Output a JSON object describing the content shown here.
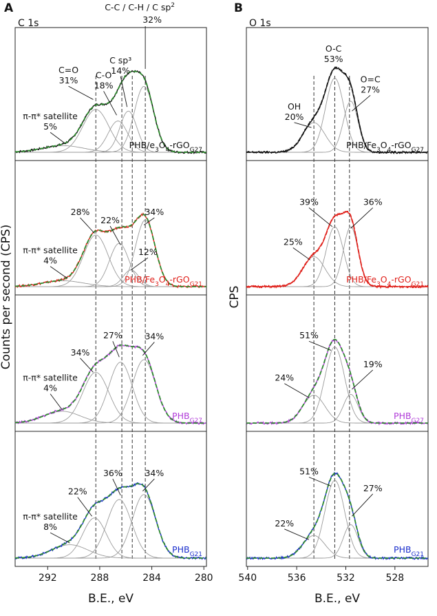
{
  "figure": {
    "panels": [
      {
        "id": "A",
        "label": "A",
        "core_level": "C 1s",
        "x_label": "B.E., eV",
        "y_label": "Counts per second (CPS)",
        "x_ticks": [
          "292",
          "288",
          "284",
          "280"
        ],
        "x_tick_values": [
          292,
          288,
          284,
          280
        ],
        "x_range": [
          294.5,
          279.8
        ],
        "reference_lines": [
          288.3,
          286.3,
          285.5,
          284.5
        ],
        "header_labels": [
          {
            "text": "C-C / C-H / C sp",
            "sup": "2"
          },
          {
            "text": "32%",
            "sup": ""
          }
        ],
        "subplots": [
          {
            "sample": "PHB/e3O4-rGOG27",
            "sample_parts": [
              {
                "t": "PHB/e",
                "s": ""
              },
              {
                "t": "3",
                "s": "sub"
              },
              {
                "t": "O",
                "s": ""
              },
              {
                "t": "4",
                "s": "sub"
              },
              {
                "t": "-rGO",
                "s": ""
              },
              {
                "t": "G27",
                "s": "sub"
              }
            ],
            "color": "#111111",
            "fit_color": "#2e8b2e",
            "peaks": [
              {
                "center": 290.8,
                "width": 1.6,
                "amp": 0.08
              },
              {
                "center": 288.3,
                "width": 1.0,
                "amp": 0.52
              },
              {
                "center": 286.6,
                "width": 0.75,
                "amp": 0.38
              },
              {
                "center": 285.8,
                "width": 0.65,
                "amp": 0.5
              },
              {
                "center": 284.6,
                "width": 0.75,
                "amp": 0.8
              }
            ],
            "annotations": [
              {
                "lines": [
                  "C=O",
                  "31%"
                ],
                "tx": 290.4,
                "ty": 0.96,
                "ax": 288.5,
                "ay": 0.64
              },
              {
                "lines": [
                  "C-O",
                  "18%"
                ],
                "tx": 287.7,
                "ty": 0.9,
                "ax": 286.7,
                "ay": 0.45
              },
              {
                "lines": [
                  "C sp³",
                  "14%"
                ],
                "tx": 286.4,
                "ty": 1.08,
                "ax": 285.9,
                "ay": 0.55
              },
              {
                "lines": [
                  "π-π* satellite",
                  "5%"
                ],
                "tx": 291.8,
                "ty": 0.4,
                "ax": 290.6,
                "ay": 0.1
              }
            ]
          },
          {
            "sample": "PHB/Fe3O4-rGOG21",
            "sample_parts": [
              {
                "t": "PHB/Fe",
                "s": ""
              },
              {
                "t": "3",
                "s": "sub"
              },
              {
                "t": "O",
                "s": ""
              },
              {
                "t": "4",
                "s": "sub"
              },
              {
                "t": "-rGO",
                "s": ""
              },
              {
                "t": "G21",
                "s": "sub"
              }
            ],
            "color": "#e0201a",
            "fit_color": "#2e8b2e",
            "peaks": [
              {
                "center": 290.8,
                "width": 1.6,
                "amp": 0.07
              },
              {
                "center": 288.3,
                "width": 0.95,
                "amp": 0.62
              },
              {
                "center": 286.5,
                "width": 0.75,
                "amp": 0.52
              },
              {
                "center": 285.6,
                "width": 0.6,
                "amp": 0.2
              },
              {
                "center": 284.5,
                "width": 0.75,
                "amp": 0.8
              }
            ],
            "annotations": [
              {
                "lines": [
                  "28%"
                ],
                "tx": 289.5,
                "ty": 0.86,
                "ax": 288.4,
                "ay": 0.64
              },
              {
                "lines": [
                  "22%"
                ],
                "tx": 287.2,
                "ty": 0.76,
                "ax": 286.4,
                "ay": 0.5
              },
              {
                "lines": [
                  "34%"
                ],
                "tx": 283.8,
                "ty": 0.86,
                "ax": 284.6,
                "ay": 0.74
              },
              {
                "lines": [
                  "12%"
                ],
                "tx": 284.3,
                "ty": 0.38,
                "ax": 285.6,
                "ay": 0.2
              },
              {
                "lines": [
                  "π-π* satellite",
                  "4%"
                ],
                "tx": 291.8,
                "ty": 0.4,
                "ax": 290.5,
                "ay": 0.1
              }
            ]
          },
          {
            "sample": "PHBG27",
            "sample_parts": [
              {
                "t": "PHB",
                "s": ""
              },
              {
                "t": "G27",
                "s": "sub"
              }
            ],
            "color": "#b03cd8",
            "fit_color": "#2e8b2e",
            "peaks": [
              {
                "center": 290.9,
                "width": 1.4,
                "amp": 0.14
              },
              {
                "center": 288.3,
                "width": 1.0,
                "amp": 0.6
              },
              {
                "center": 286.4,
                "width": 0.9,
                "amp": 0.72
              },
              {
                "center": 284.6,
                "width": 0.9,
                "amp": 0.75
              }
            ],
            "annotations": [
              {
                "lines": [
                  "34%"
                ],
                "tx": 289.5,
                "ty": 0.8,
                "ax": 288.5,
                "ay": 0.6
              },
              {
                "lines": [
                  "27%"
                ],
                "tx": 287.0,
                "ty": 1.0,
                "ax": 286.5,
                "ay": 0.78
              },
              {
                "lines": [
                  "34%"
                ],
                "tx": 283.8,
                "ty": 0.99,
                "ax": 284.7,
                "ay": 0.8
              },
              {
                "lines": [
                  "π-π* satellite",
                  "4%"
                ],
                "tx": 291.8,
                "ty": 0.5,
                "ax": 290.9,
                "ay": 0.16
              }
            ]
          },
          {
            "sample": "PHBG21",
            "sample_parts": [
              {
                "t": "PHB",
                "s": ""
              },
              {
                "t": "G21",
                "s": "sub"
              }
            ],
            "color": "#1a2ecc",
            "fit_color": "#2e8b2e",
            "peaks": [
              {
                "center": 290.3,
                "width": 1.4,
                "amp": 0.16
              },
              {
                "center": 288.4,
                "width": 0.9,
                "amp": 0.48
              },
              {
                "center": 286.5,
                "width": 0.95,
                "amp": 0.7
              },
              {
                "center": 284.6,
                "width": 0.9,
                "amp": 0.76
              }
            ],
            "annotations": [
              {
                "lines": [
                  "22%"
                ],
                "tx": 289.7,
                "ty": 0.76,
                "ax": 288.6,
                "ay": 0.5
              },
              {
                "lines": [
                  "36%"
                ],
                "tx": 287.0,
                "ty": 0.98,
                "ax": 286.4,
                "ay": 0.75
              },
              {
                "lines": [
                  "34%"
                ],
                "tx": 283.8,
                "ty": 0.98,
                "ax": 284.7,
                "ay": 0.8
              },
              {
                "lines": [
                  "π-π* satellite",
                  "8%"
                ],
                "tx": 291.8,
                "ty": 0.46,
                "ax": 290.3,
                "ay": 0.18
              }
            ]
          }
        ]
      },
      {
        "id": "B",
        "label": "B",
        "core_level": "O 1s",
        "x_label": "B.E., eV",
        "y_label": "CPS",
        "x_ticks": [
          "540",
          "536",
          "532",
          "528"
        ],
        "x_tick_values": [
          540,
          536,
          532,
          528
        ],
        "x_range": [
          540.1,
          525.3
        ],
        "reference_lines": [
          534.6,
          532.9,
          531.7
        ],
        "header_labels": [],
        "subplots": [
          {
            "sample": "PHB/Fe3O4-rGOG27",
            "sample_parts": [
              {
                "t": "PHB/Fe",
                "s": ""
              },
              {
                "t": "3",
                "s": "sub"
              },
              {
                "t": "O",
                "s": ""
              },
              {
                "t": "4",
                "s": "sub"
              },
              {
                "t": "-rGO",
                "s": ""
              },
              {
                "t": "G27",
                "s": "sub"
              }
            ],
            "color": "#111111",
            "fit_color": "#111111",
            "peaks": [
              {
                "center": 534.6,
                "width": 0.9,
                "amp": 0.36
              },
              {
                "center": 532.9,
                "width": 0.75,
                "amp": 0.9
              },
              {
                "center": 531.6,
                "width": 0.6,
                "amp": 0.62
              }
            ],
            "annotations": [
              {
                "lines": [
                  "O-C",
                  "53%"
                ],
                "tx": 533.0,
                "ty": 1.22,
                "ax": 533.0,
                "ay": 1.22
              },
              {
                "lines": [
                  "OH",
                  "20%"
                ],
                "tx": 536.2,
                "ty": 0.52,
                "ax": 534.8,
                "ay": 0.3
              },
              {
                "lines": [
                  "O=C",
                  "27%"
                ],
                "tx": 530.0,
                "ty": 0.85,
                "ax": 531.5,
                "ay": 0.5
              }
            ]
          },
          {
            "sample": "PHB/Fe3O4-rGOG21",
            "sample_parts": [
              {
                "t": "PHB/Fe",
                "s": ""
              },
              {
                "t": "3",
                "s": "sub"
              },
              {
                "t": "O",
                "s": ""
              },
              {
                "t": "4",
                "s": "sub"
              },
              {
                "t": "-rGO",
                "s": ""
              },
              {
                "t": "G21",
                "s": "sub"
              }
            ],
            "color": "#e0201a",
            "fit_color": "#e0201a",
            "peaks": [
              {
                "center": 534.6,
                "width": 0.9,
                "amp": 0.36
              },
              {
                "center": 532.9,
                "width": 0.7,
                "amp": 0.72
              },
              {
                "center": 531.6,
                "width": 0.6,
                "amp": 0.72
              }
            ],
            "annotations": [
              {
                "lines": [
                  "39%"
                ],
                "tx": 535.0,
                "ty": 0.98,
                "ax": 533.1,
                "ay": 0.72
              },
              {
                "lines": [
                  "36%"
                ],
                "tx": 529.8,
                "ty": 0.98,
                "ax": 531.6,
                "ay": 0.7
              },
              {
                "lines": [
                  "25%"
                ],
                "tx": 536.3,
                "ty": 0.5,
                "ax": 534.9,
                "ay": 0.32
              }
            ]
          },
          {
            "sample": "PHBG27",
            "sample_parts": [
              {
                "t": "PHB",
                "s": ""
              },
              {
                "t": "G27",
                "s": "sub"
              }
            ],
            "color": "#b03cd8",
            "fit_color": "#2e8b2e",
            "peaks": [
              {
                "center": 534.6,
                "width": 0.9,
                "amp": 0.33
              },
              {
                "center": 532.9,
                "width": 0.8,
                "amp": 0.9
              },
              {
                "center": 531.6,
                "width": 0.6,
                "amp": 0.34
              }
            ],
            "annotations": [
              {
                "lines": [
                  "51%"
                ],
                "tx": 535.0,
                "ty": 1.0,
                "ax": 533.2,
                "ay": 0.86
              },
              {
                "lines": [
                  "19%"
                ],
                "tx": 529.8,
                "ty": 0.66,
                "ax": 531.5,
                "ay": 0.4
              },
              {
                "lines": [
                  "24%"
                ],
                "tx": 537.0,
                "ty": 0.5,
                "ax": 535.0,
                "ay": 0.3
              }
            ]
          },
          {
            "sample": "PHBG21",
            "sample_parts": [
              {
                "t": "PHB",
                "s": ""
              },
              {
                "t": "G21",
                "s": "sub"
              }
            ],
            "color": "#1a2ecc",
            "fit_color": "#2e8b2e",
            "peaks": [
              {
                "center": 534.6,
                "width": 0.9,
                "amp": 0.27
              },
              {
                "center": 532.9,
                "width": 0.8,
                "amp": 0.93
              },
              {
                "center": 531.6,
                "width": 0.6,
                "amp": 0.4
              }
            ],
            "annotations": [
              {
                "lines": [
                  "51%"
                ],
                "tx": 535.0,
                "ty": 1.0,
                "ax": 533.2,
                "ay": 0.86
              },
              {
                "lines": [
                  "27%"
                ],
                "tx": 529.8,
                "ty": 0.8,
                "ax": 531.5,
                "ay": 0.5
              },
              {
                "lines": [
                  "22%"
                ],
                "tx": 537.0,
                "ty": 0.38,
                "ax": 535.0,
                "ay": 0.22
              }
            ]
          }
        ]
      }
    ]
  },
  "chart_data": [
    {
      "type": "line",
      "title": "",
      "xlabel": "B.E., eV",
      "ylabel": "Counts per second (CPS)",
      "xlim": [
        294.5,
        279.8
      ],
      "x_ticks": [
        292,
        288,
        284,
        280
      ],
      "panel": "A",
      "core_level": "C 1s",
      "components": [
        "C=O",
        "C-O",
        "C sp3",
        "C-C / C-H / C sp2",
        "π-π* satellite"
      ],
      "series": [
        {
          "name": "PHB/e3O4-rGOG27",
          "values": {
            "C=O": 31,
            "C-O": 18,
            "C sp3": 14,
            "C-C / C-H / C sp2": 32,
            "π-π* satellite": 5
          }
        },
        {
          "name": "PHB/Fe3O4-rGOG21",
          "values": {
            "C=O": 28,
            "C-O": 22,
            "C sp3": 12,
            "C-C / C-H / C sp2": 34,
            "π-π* satellite": 4
          }
        },
        {
          "name": "PHBG27",
          "values": {
            "C=O": 34,
            "C-O": 27,
            "C-C / C-H / C sp2": 34,
            "π-π* satellite": 4
          }
        },
        {
          "name": "PHBG21",
          "values": {
            "C=O": 22,
            "C-O": 36,
            "C-C / C-H / C sp2": 34,
            "π-π* satellite": 8
          }
        }
      ]
    },
    {
      "type": "line",
      "title": "",
      "xlabel": "B.E., eV",
      "ylabel": "CPS",
      "xlim": [
        540.1,
        525.3
      ],
      "x_ticks": [
        540,
        536,
        532,
        528
      ],
      "panel": "B",
      "core_level": "O 1s",
      "components": [
        "OH",
        "O-C",
        "O=C"
      ],
      "series": [
        {
          "name": "PHB/Fe3O4-rGOG27",
          "values": {
            "OH": 20,
            "O-C": 53,
            "O=C": 27
          }
        },
        {
          "name": "PHB/Fe3O4-rGOG21",
          "values": {
            "OH": 25,
            "O-C": 39,
            "O=C": 36
          }
        },
        {
          "name": "PHBG27",
          "values": {
            "OH": 24,
            "O-C": 51,
            "O=C": 19
          }
        },
        {
          "name": "PHBG21",
          "values": {
            "OH": 22,
            "O-C": 51,
            "O=C": 27
          }
        }
      ]
    }
  ]
}
